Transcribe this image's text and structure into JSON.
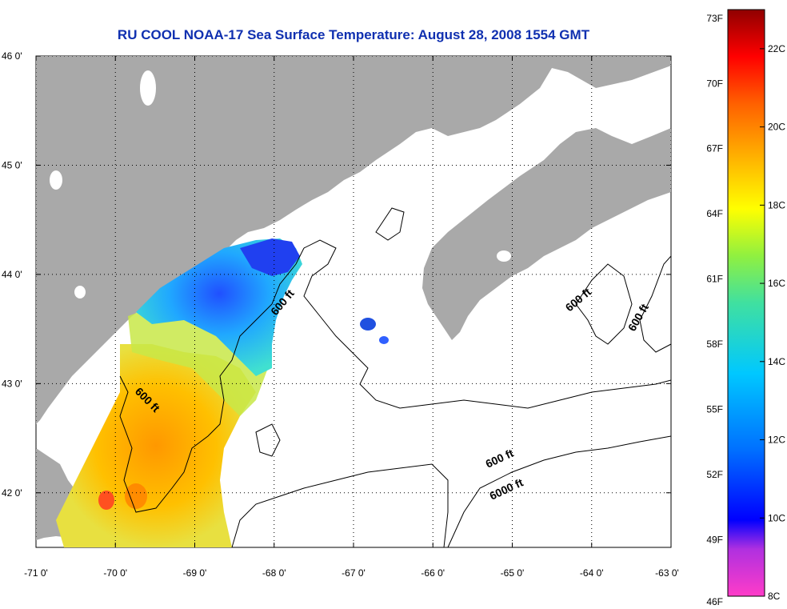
{
  "title": "RU COOL  NOAA-17  Sea Surface Temperature:  August 28, 2008 1554 GMT",
  "axes": {
    "lat_labels": [
      "46 0'",
      "45 0'",
      "44 0'",
      "43 0'",
      "42 0'"
    ],
    "lon_labels": [
      "-71 0'",
      "-70 0'",
      "-69 0'",
      "-68 0'",
      "-67 0'",
      "-66 0'",
      "-65 0'",
      "-64 0'",
      "-63 0'"
    ],
    "lat_range": [
      41.5,
      46.0
    ],
    "lon_range": [
      -71.0,
      -63.0
    ],
    "grid": "dotted"
  },
  "contours": [
    {
      "label": "600 ft"
    },
    {
      "label": "600 ft"
    },
    {
      "label": "600 ft"
    },
    {
      "label": "600 ft"
    },
    {
      "label": "600 ft"
    },
    {
      "label": "6000 ft"
    }
  ],
  "colorbar": {
    "fahrenheit": [
      "73F",
      "70F",
      "67F",
      "64F",
      "61F",
      "58F",
      "55F",
      "52F",
      "49F",
      "46F"
    ],
    "celsius": [
      "22C",
      "20C",
      "18C",
      "16C",
      "14C",
      "12C",
      "10C",
      "8C"
    ],
    "range_c": [
      8,
      23
    ],
    "colors": [
      "#ff3cc8",
      "#9b30ff",
      "#0000ff",
      "#0070ff",
      "#00c8ff",
      "#40e0b0",
      "#80ff40",
      "#ffff00",
      "#ffb000",
      "#ff6000",
      "#ff0000",
      "#900000"
    ]
  },
  "colors": {
    "land": "#a9a9a9",
    "water": "#ffffff",
    "contour": "#000000",
    "title": "#1030b0"
  }
}
